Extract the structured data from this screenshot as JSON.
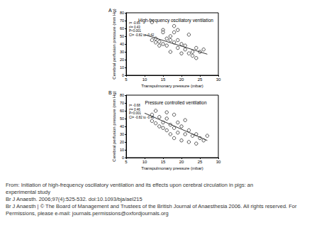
{
  "chart_data": [
    {
      "type": "scatter",
      "panel_label": "A",
      "title": "High-frequency oscillatory ventilation",
      "annotations": [
        "r= -0.65",
        "r²= 0.43",
        "P<0.001",
        "CI= -0.82 to -0.42"
      ],
      "x_label": "Transpulmonary pressure (mbar)",
      "y_label": "Cerebral perfusion pressure (mm Hg)",
      "series": [
        {
          "type": "scatter",
          "marker": "circle",
          "color": "#000000",
          "x": [
            12,
            12,
            13,
            13,
            14,
            14,
            15,
            15,
            15,
            16,
            16,
            17,
            17,
            17,
            18,
            18,
            18,
            19,
            19,
            19,
            20,
            20,
            21,
            21,
            22,
            22,
            23,
            23,
            24,
            24,
            25,
            26
          ],
          "values": [
            68,
            45,
            42,
            47,
            38,
            43,
            58,
            55,
            40,
            47,
            38,
            50,
            45,
            30,
            63,
            55,
            42,
            45,
            35,
            58,
            40,
            28,
            33,
            38,
            52,
            28,
            30,
            25,
            35,
            22,
            30,
            33
          ]
        },
        {
          "type": "line",
          "color": "#333333",
          "x": [
            10,
            27
          ],
          "values": [
            52,
            27
          ]
        }
      ],
      "xlim": [
        5,
        30
      ],
      "xticks": [
        5,
        10,
        15,
        20,
        25,
        30
      ],
      "ylim": [
        0,
        80
      ],
      "yticks": [
        0,
        10,
        20,
        30,
        40,
        50,
        60,
        70,
        80
      ],
      "grid": false
    },
    {
      "type": "scatter",
      "panel_label": "B",
      "title": "Pressure controlled ventilation",
      "annotations": [
        "r= -0.68",
        "r²= 0.46",
        "P<0.001",
        "CI= -0.82 to -0.46"
      ],
      "x_label": "Transpulmonary pressure (mbar)",
      "y_label": "Cerebral perfusion pressure (mm Hg)",
      "series": [
        {
          "type": "scatter",
          "marker": "circle",
          "color": "#000000",
          "x": [
            12,
            12,
            13,
            13,
            14,
            14,
            15,
            15,
            16,
            16,
            16,
            17,
            17,
            18,
            18,
            18,
            19,
            19,
            20,
            20,
            21,
            21,
            22,
            22,
            23,
            24,
            24,
            25,
            26,
            27
          ],
          "values": [
            55,
            47,
            60,
            44,
            52,
            40,
            45,
            38,
            58,
            50,
            35,
            42,
            30,
            55,
            38,
            25,
            45,
            32,
            40,
            22,
            48,
            30,
            35,
            20,
            28,
            30,
            18,
            25,
            22,
            28
          ]
        },
        {
          "type": "line",
          "color": "#333333",
          "x": [
            10,
            27
          ],
          "values": [
            57,
            22
          ]
        }
      ],
      "xlim": [
        5,
        30
      ],
      "xticks": [
        5,
        10,
        15,
        20,
        25,
        30
      ],
      "ylim": [
        0,
        80
      ],
      "yticks": [
        0,
        10,
        20,
        30,
        40,
        50,
        60,
        70,
        80
      ],
      "grid": false
    }
  ],
  "caption": {
    "lines": [
      "From: Initiation of high-frequency oscillatory ventilation and its effects upon cerebral circulation in pigs: an",
      "experimental study",
      "Br J Anaesth. 2006;97(4):525-532. doi:10.1093/bja/ael215",
      "Br J Anaesth | © The Board of Management and Trustees of the British Journal of Anaesthesia 2006. All rights reserved. For",
      "Permissions, please e-mail: journals.permissions@oxfordjournals.org"
    ]
  }
}
